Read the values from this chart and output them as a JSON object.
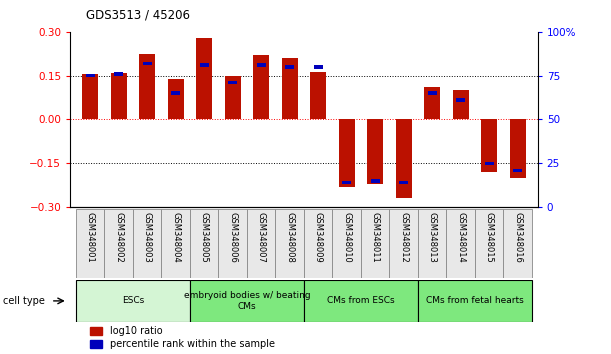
{
  "title": "GDS3513 / 45206",
  "samples": [
    "GSM348001",
    "GSM348002",
    "GSM348003",
    "GSM348004",
    "GSM348005",
    "GSM348006",
    "GSM348007",
    "GSM348008",
    "GSM348009",
    "GSM348010",
    "GSM348011",
    "GSM348012",
    "GSM348013",
    "GSM348014",
    "GSM348015",
    "GSM348016"
  ],
  "log10_ratio": [
    0.155,
    0.16,
    0.225,
    0.14,
    0.28,
    0.15,
    0.22,
    0.21,
    0.163,
    -0.23,
    -0.22,
    -0.27,
    0.11,
    0.1,
    -0.18,
    -0.2
  ],
  "percentile_rank": [
    75,
    76,
    82,
    65,
    81,
    71,
    81,
    80,
    80,
    14,
    15,
    14,
    65,
    61,
    25,
    21
  ],
  "cell_groups": [
    {
      "label": "ESCs",
      "start": 0,
      "end": 3,
      "color": "#d4f5d4"
    },
    {
      "label": "embryoid bodies w/ beating\nCMs",
      "start": 4,
      "end": 7,
      "color": "#7ee87e"
    },
    {
      "label": "CMs from ESCs",
      "start": 8,
      "end": 11,
      "color": "#7ee87e"
    },
    {
      "label": "CMs from fetal hearts",
      "start": 12,
      "end": 15,
      "color": "#7ee87e"
    }
  ],
  "bar_color_red": "#bb1100",
  "bar_color_blue": "#0000bb",
  "ylim_left": [
    -0.3,
    0.3
  ],
  "ylim_right": [
    0,
    100
  ],
  "bar_width": 0.55,
  "background_color": "#ffffff"
}
